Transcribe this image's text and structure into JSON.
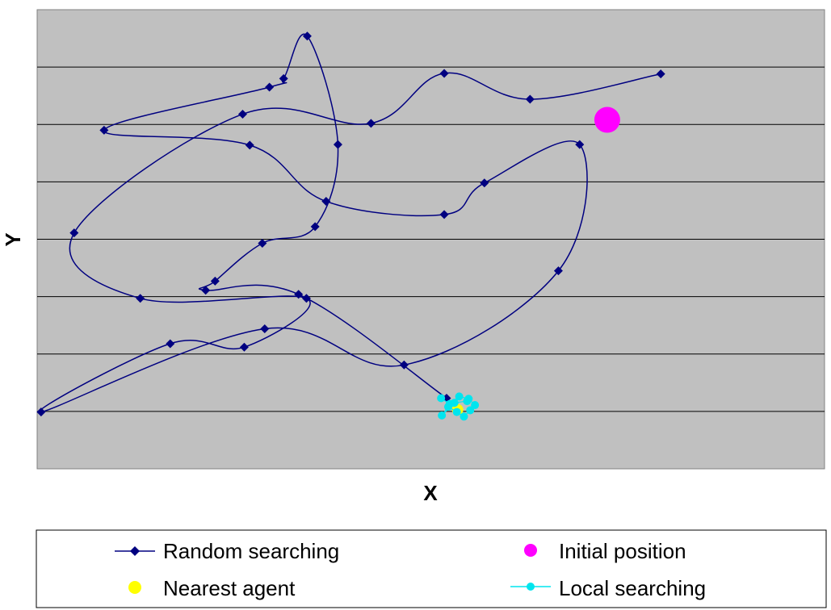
{
  "chart_data": {
    "type": "line",
    "title": "",
    "xlabel": "X",
    "ylabel": "Y",
    "xlim": [
      0,
      100
    ],
    "ylim": [
      0,
      80
    ],
    "grid": {
      "horizontal": true,
      "vertical": false,
      "yticks": [
        10,
        20,
        30,
        40,
        50,
        60,
        70
      ]
    },
    "plot_background": "#c0c0c0",
    "legend_position": "bottom",
    "series": [
      {
        "name": "Random searching",
        "color": "#000080",
        "marker": "diamond",
        "smooth": true,
        "points": [
          [
            79.2,
            68.8
          ],
          [
            62.6,
            64.4
          ],
          [
            51.7,
            68.9
          ],
          [
            42.4,
            60.2
          ],
          [
            26.1,
            61.8
          ],
          [
            4.7,
            41.1
          ],
          [
            13.1,
            29.7
          ],
          [
            34.2,
            29.7
          ],
          [
            26.3,
            21.2
          ],
          [
            16.9,
            21.8
          ],
          [
            0.5,
            9.9
          ],
          [
            28.9,
            24.4
          ],
          [
            46.6,
            18.1
          ],
          [
            66.2,
            34.5
          ],
          [
            68.9,
            56.5
          ],
          [
            56.8,
            49.8
          ],
          [
            51.7,
            44.3
          ],
          [
            36.7,
            46.6
          ],
          [
            27.0,
            56.4
          ],
          [
            8.5,
            59.0
          ],
          [
            29.5,
            66.5
          ],
          [
            31.3,
            68.0
          ],
          [
            34.3,
            75.4
          ],
          [
            38.2,
            56.5
          ],
          [
            35.3,
            42.2
          ],
          [
            28.6,
            39.3
          ],
          [
            22.6,
            32.7
          ],
          [
            21.4,
            31.1
          ],
          [
            33.2,
            30.4
          ],
          [
            52.0,
            12.3
          ]
        ]
      },
      {
        "name": "Initial position",
        "color": "#ff00ff",
        "marker": "circle",
        "points": [
          [
            72.4,
            60.8
          ]
        ]
      },
      {
        "name": "Nearest agent",
        "color": "#ffff00",
        "marker": "circle",
        "points": [
          [
            53.4,
            10.3
          ]
        ]
      },
      {
        "name": "Local searching",
        "color": "#00e5ee",
        "marker": "circle",
        "points": [
          [
            51.3,
            12.3
          ],
          [
            52.4,
            11.3
          ],
          [
            53.6,
            12.6
          ],
          [
            54.8,
            12.2
          ],
          [
            55.6,
            11.1
          ],
          [
            55.0,
            10.2
          ],
          [
            54.2,
            9.1
          ],
          [
            53.3,
            9.9
          ],
          [
            52.2,
            10.8
          ],
          [
            51.4,
            9.3
          ],
          [
            53.0,
            11.5
          ],
          [
            54.6,
            11.8
          ]
        ]
      }
    ]
  },
  "legend": {
    "items": [
      {
        "label": "Random searching",
        "series": 0
      },
      {
        "label": "Initial position",
        "series": 1
      },
      {
        "label": "Nearest agent",
        "series": 2
      },
      {
        "label": "Local searching",
        "series": 3
      }
    ]
  }
}
